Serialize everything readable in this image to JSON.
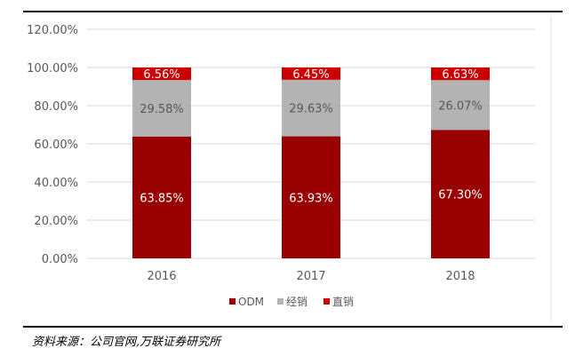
{
  "chart_data": {
    "type": "bar",
    "stacked": true,
    "categories": [
      "2016",
      "2017",
      "2018"
    ],
    "series": [
      {
        "name": "ODM",
        "values": [
          63.85,
          63.93,
          67.3
        ],
        "color": "#990000",
        "label_color": "#ffffff"
      },
      {
        "name": "经销",
        "values": [
          29.58,
          29.63,
          26.07
        ],
        "color": "#b3b3b3",
        "label_color": "#595959"
      },
      {
        "name": "直销",
        "values": [
          6.56,
          6.45,
          6.63
        ],
        "color": "#cc0000",
        "label_color": "#ffffff"
      }
    ],
    "ylim": [
      0,
      120
    ],
    "yticks": [
      "0.00%",
      "20.00%",
      "40.00%",
      "60.00%",
      "80.00%",
      "100.00%",
      "120.00%"
    ],
    "grid": true,
    "legend": "bottom",
    "title": "",
    "xlabel": "",
    "ylabel": ""
  },
  "source": "资料来源：公司官网,万联证券研究所"
}
